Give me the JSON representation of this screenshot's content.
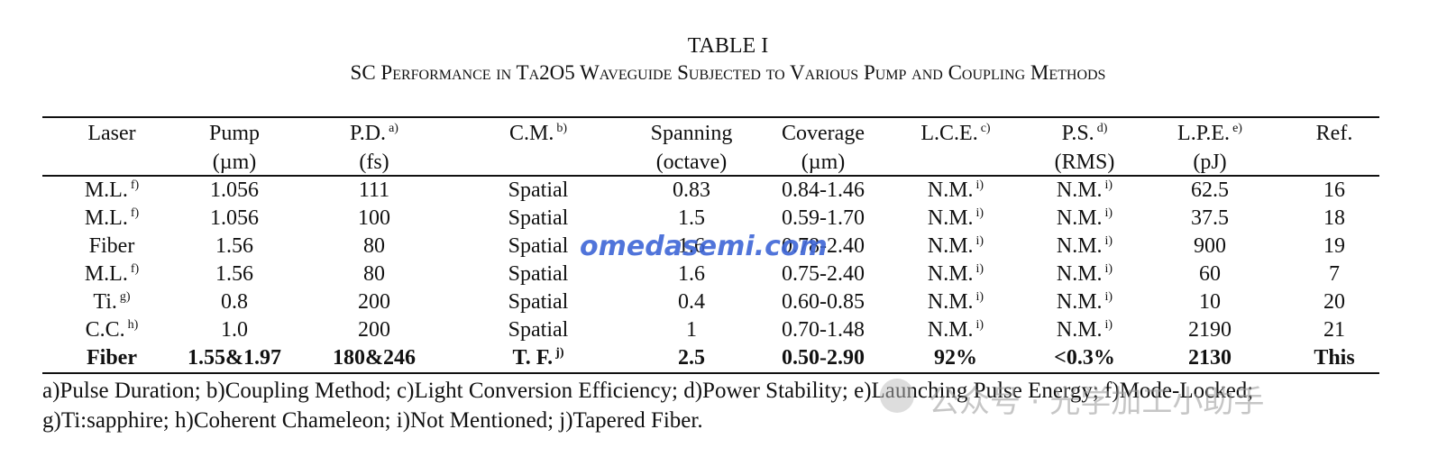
{
  "title": "TABLE I",
  "subtitle": "SC Performance in Ta2O5 Waveguide Subjected to Various Pump and Coupling Methods",
  "table": {
    "header": [
      {
        "text": "Laser"
      },
      {
        "text": "Pump",
        "unit": "(µm)"
      },
      {
        "text": "P.D.",
        "sup": "a)",
        "unit": "(fs)"
      },
      {
        "text": "C.M.",
        "sup": "b)"
      },
      {
        "text": "Spanning",
        "unit": "(octave)"
      },
      {
        "text": "Coverage",
        "unit": "(µm)"
      },
      {
        "text": "L.C.E.",
        "sup": "c)"
      },
      {
        "text": "P.S.",
        "sup": "d)",
        "unit": "(RMS)"
      },
      {
        "text": "L.P.E.",
        "sup": "e)",
        "unit": "(pJ)"
      },
      {
        "text": "Ref."
      }
    ],
    "rows": [
      [
        {
          "text": "M.L.",
          "sup": "f)"
        },
        "1.056",
        "111",
        "Spatial",
        "0.83",
        "0.84-1.46",
        {
          "text": "N.M.",
          "sup": "i)"
        },
        {
          "text": "N.M.",
          "sup": "i)"
        },
        "62.5",
        "16"
      ],
      [
        {
          "text": "M.L.",
          "sup": "f)"
        },
        "1.056",
        "100",
        "Spatial",
        "1.5",
        "0.59-1.70",
        {
          "text": "N.M.",
          "sup": "i)"
        },
        {
          "text": "N.M.",
          "sup": "i)"
        },
        "37.5",
        "18"
      ],
      [
        "Fiber",
        "1.56",
        "80",
        "Spatial",
        "1.6",
        "0.78-2.40",
        {
          "text": "N.M.",
          "sup": "i)"
        },
        {
          "text": "N.M.",
          "sup": "i)"
        },
        "900",
        "19"
      ],
      [
        {
          "text": "M.L.",
          "sup": "f)"
        },
        "1.56",
        "80",
        "Spatial",
        "1.6",
        "0.75-2.40",
        {
          "text": "N.M.",
          "sup": "i)"
        },
        {
          "text": "N.M.",
          "sup": "i)"
        },
        "60",
        "7"
      ],
      [
        {
          "text": "Ti.",
          "sup": "g)"
        },
        "0.8",
        "200",
        "Spatial",
        "0.4",
        "0.60-0.85",
        {
          "text": "N.M.",
          "sup": "i)"
        },
        {
          "text": "N.M.",
          "sup": "i)"
        },
        "10",
        "20"
      ],
      [
        {
          "text": "C.C.",
          "sup": "h)"
        },
        "1.0",
        "200",
        "Spatial",
        "1",
        "0.70-1.48",
        {
          "text": "N.M.",
          "sup": "i)"
        },
        {
          "text": "N.M.",
          "sup": "i)"
        },
        "2190",
        "21"
      ],
      [
        "Fiber",
        "1.55&1.97",
        "180&246",
        {
          "text": "T. F.",
          "sup": "j)"
        },
        "2.5",
        "0.50-2.90",
        "92%",
        "<0.3%",
        "2130",
        "This"
      ]
    ]
  },
  "footnotes": [
    "a)Pulse Duration; b)Coupling Method; c)Light Conversion Efficiency; d)Power Stability; e)Launching Pulse Energy; f)Mode-Locked;",
    "g)Ti:sapphire; h)Coherent Chameleon; i)Not Mentioned; j)Tapered Fiber."
  ],
  "watermarks": [
    "omedasemi.com",
    "公众号 · 光学加工小助手"
  ]
}
